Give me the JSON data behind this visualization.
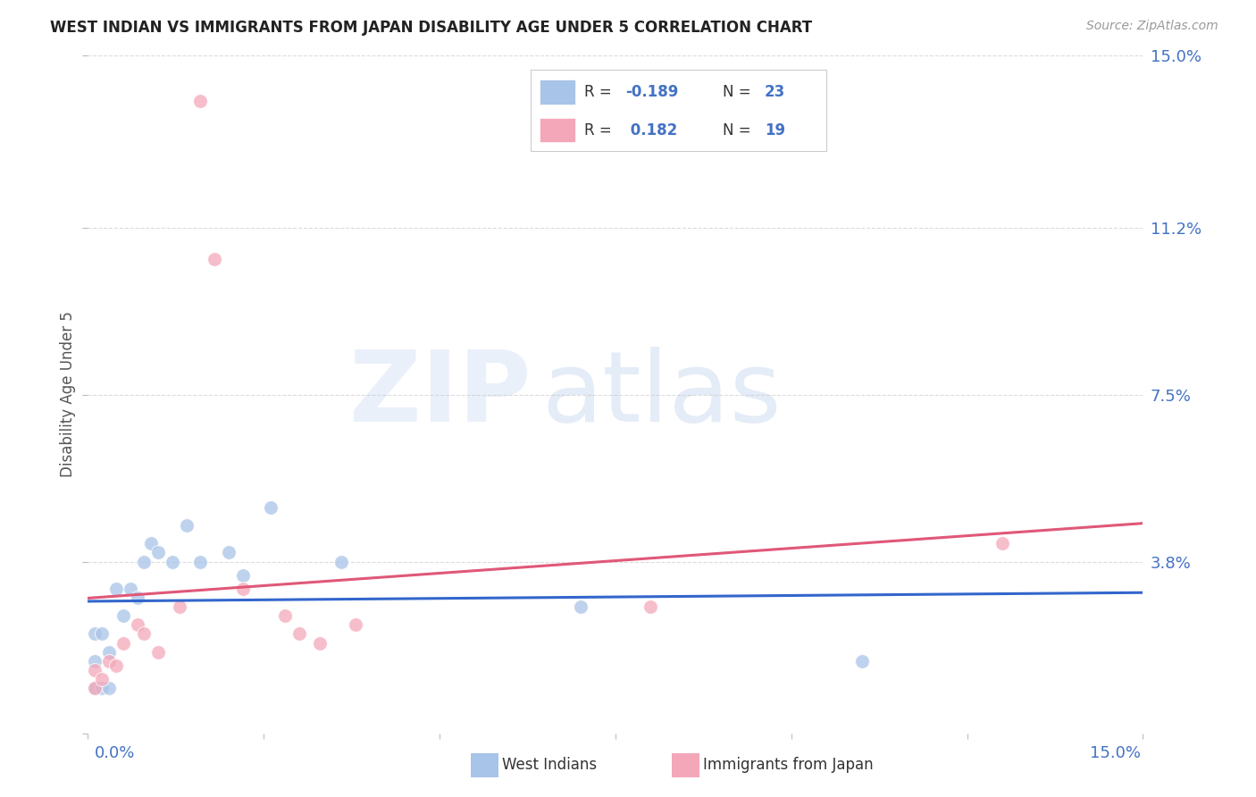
{
  "title": "WEST INDIAN VS IMMIGRANTS FROM JAPAN DISABILITY AGE UNDER 5 CORRELATION CHART",
  "source": "Source: ZipAtlas.com",
  "ylabel": "Disability Age Under 5",
  "ytick_vals": [
    0.0,
    0.038,
    0.075,
    0.112,
    0.15
  ],
  "ytick_labels": [
    "",
    "3.8%",
    "7.5%",
    "11.2%",
    "15.0%"
  ],
  "xtick_vals": [
    0.0,
    0.025,
    0.05,
    0.075,
    0.1,
    0.125,
    0.15
  ],
  "xlim": [
    0.0,
    0.15
  ],
  "ylim": [
    0.0,
    0.15
  ],
  "blue_color": "#a8c4e8",
  "pink_color": "#f4a7b9",
  "trend_blue": "#3366cc",
  "trend_pink": "#e05878",
  "dashed_color": "#e8c0cc",
  "text_color": "#4472c4",
  "grid_color": "#cccccc",
  "background_color": "#ffffff",
  "wi_x": [
    0.001,
    0.001,
    0.001,
    0.002,
    0.002,
    0.003,
    0.003,
    0.004,
    0.005,
    0.006,
    0.007,
    0.008,
    0.009,
    0.01,
    0.012,
    0.014,
    0.016,
    0.02,
    0.022,
    0.026,
    0.036,
    0.07,
    0.11
  ],
  "wi_y": [
    0.01,
    0.016,
    0.022,
    0.01,
    0.022,
    0.01,
    0.018,
    0.032,
    0.026,
    0.032,
    0.03,
    0.038,
    0.042,
    0.04,
    0.038,
    0.046,
    0.038,
    0.04,
    0.035,
    0.05,
    0.038,
    0.028,
    0.016
  ],
  "jp_x": [
    0.001,
    0.001,
    0.002,
    0.003,
    0.004,
    0.005,
    0.007,
    0.008,
    0.01,
    0.013,
    0.016,
    0.018,
    0.022,
    0.028,
    0.03,
    0.033,
    0.038,
    0.08,
    0.13
  ],
  "jp_y": [
    0.01,
    0.014,
    0.012,
    0.016,
    0.015,
    0.02,
    0.024,
    0.022,
    0.018,
    0.028,
    0.14,
    0.105,
    0.032,
    0.026,
    0.022,
    0.02,
    0.024,
    0.028,
    0.042
  ],
  "R1": "-0.189",
  "N1": "23",
  "R2": "0.182",
  "N2": "19"
}
